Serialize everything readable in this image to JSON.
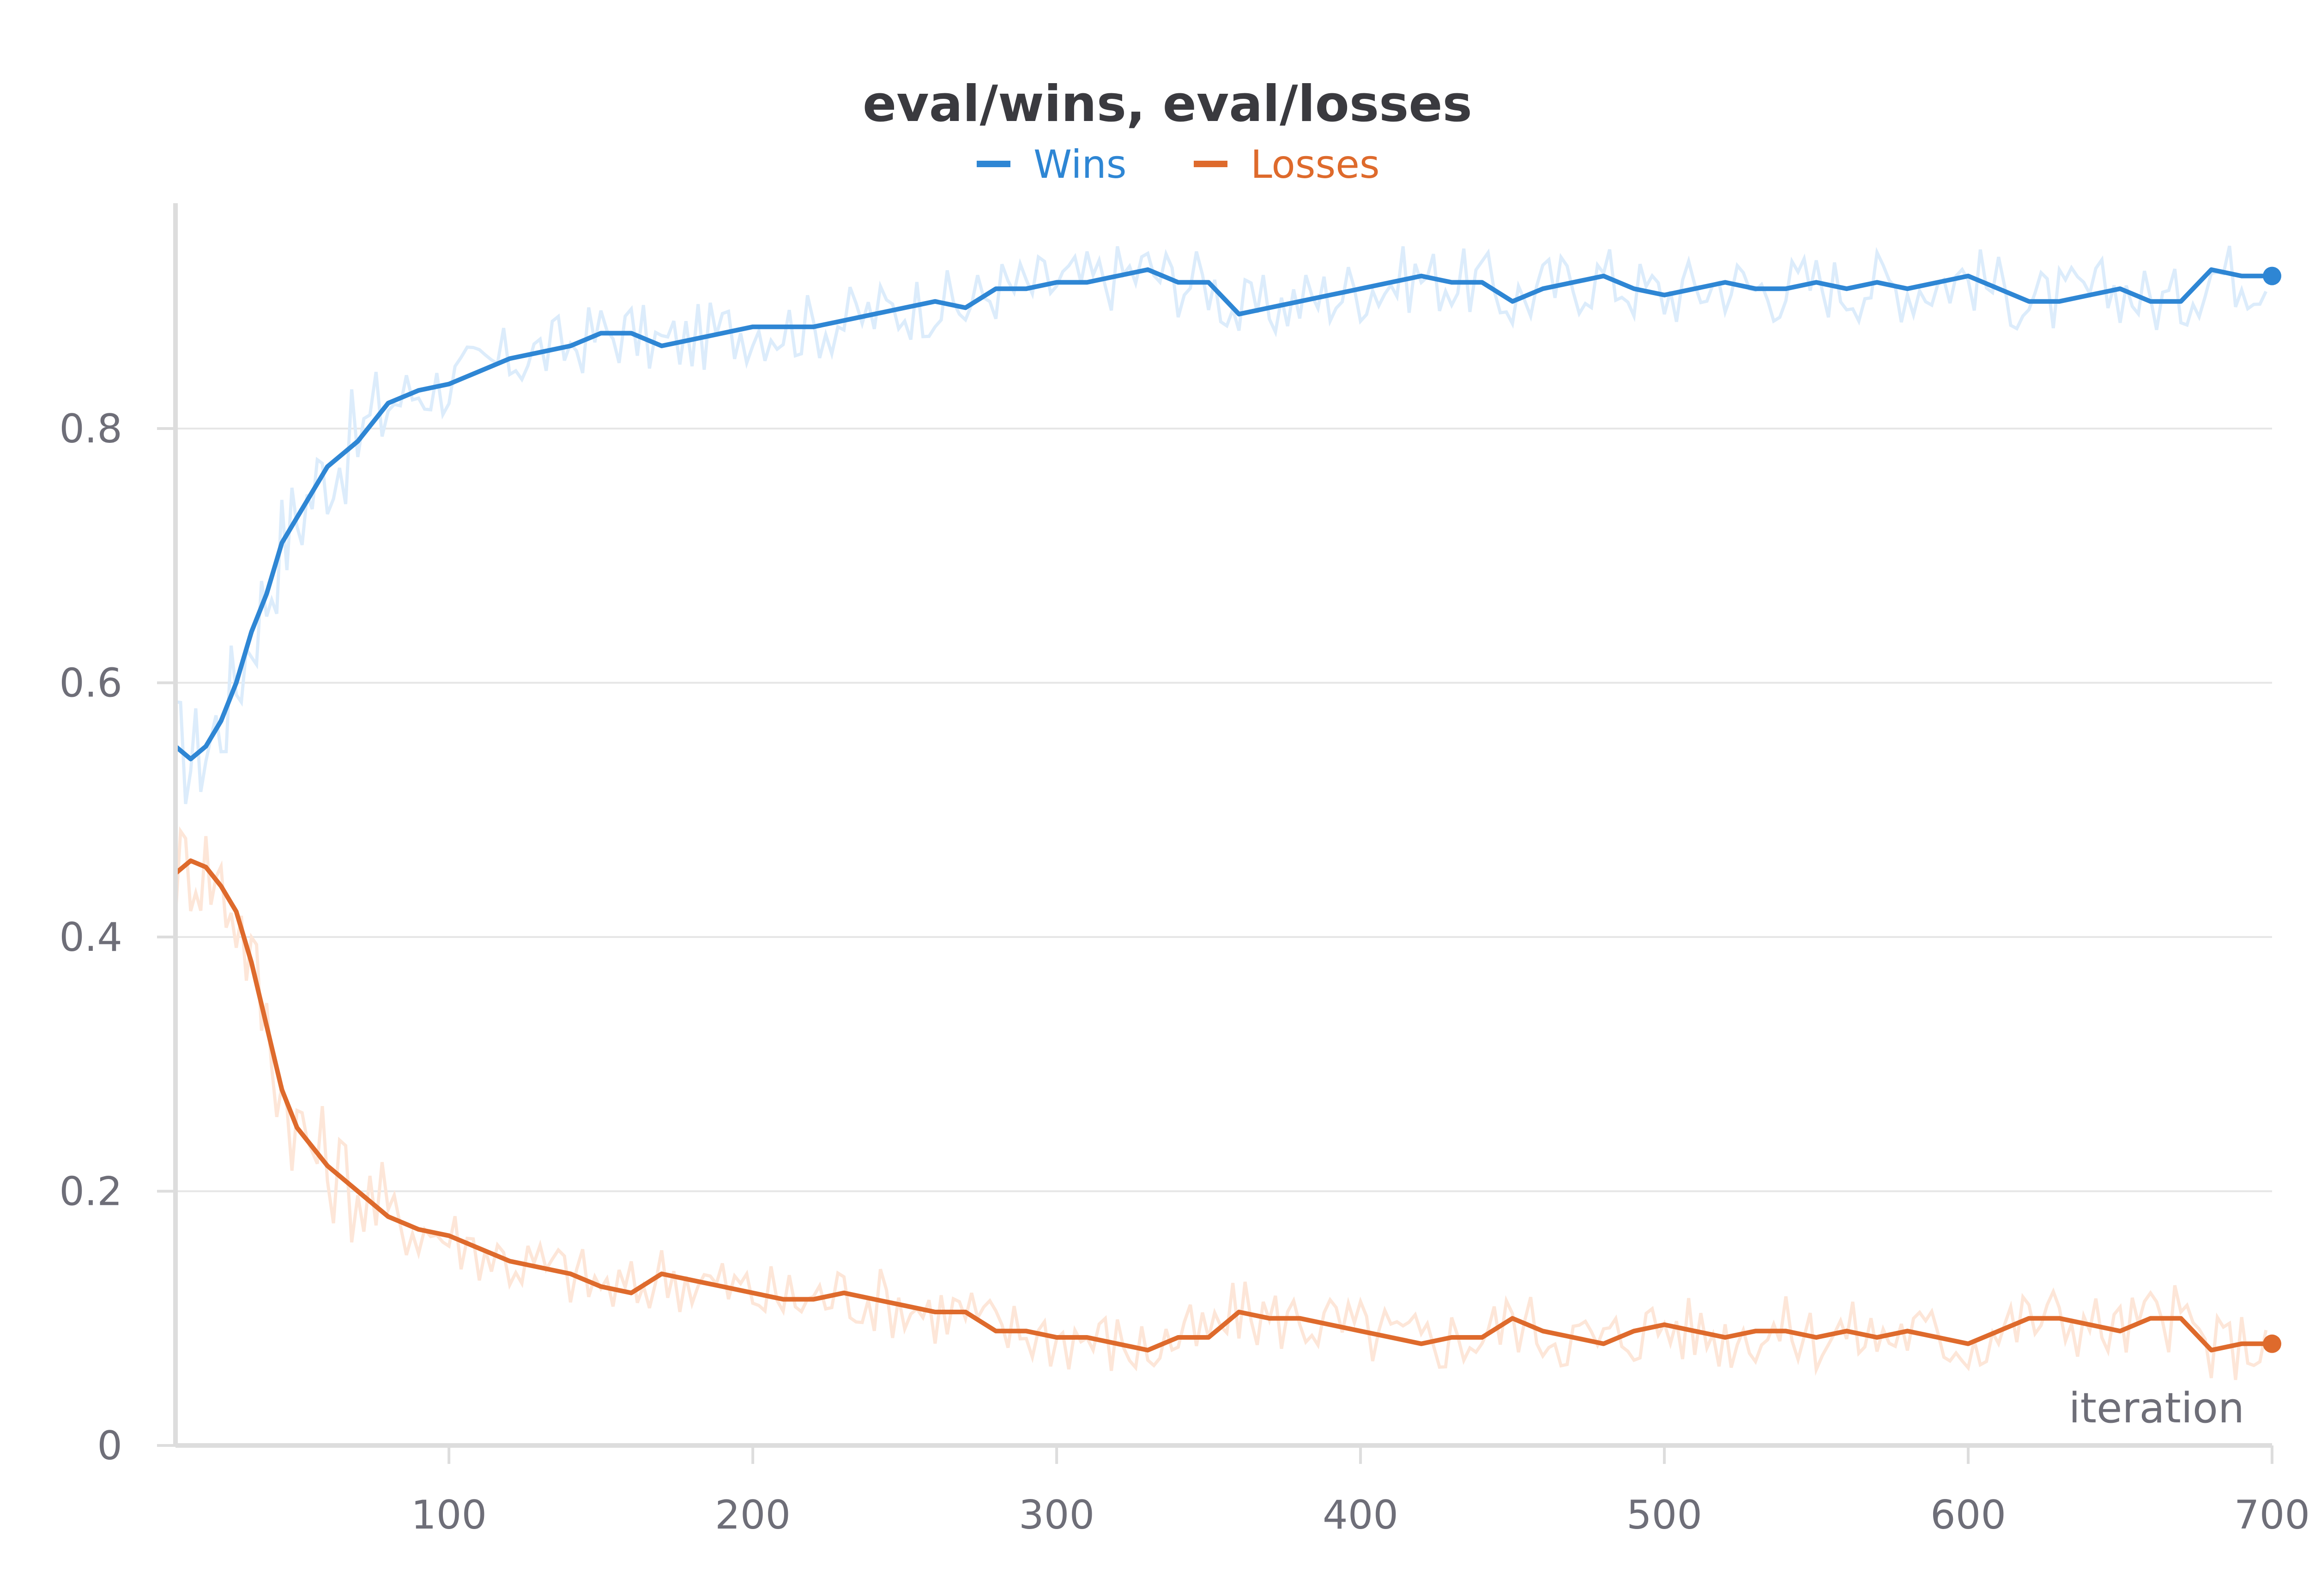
{
  "chart_data": {
    "type": "line",
    "title": "eval/wins, eval/losses",
    "xlabel": "iteration",
    "ylabel": "",
    "xlim": [
      10,
      700
    ],
    "ylim": [
      0,
      0.97
    ],
    "x_ticks": [
      100,
      200,
      300,
      400,
      500,
      600,
      700
    ],
    "x_tick_labels": [
      "100",
      "200",
      "300",
      "400",
      "500",
      "600",
      "700"
    ],
    "y_ticks": [
      0,
      0.2,
      0.4,
      0.6,
      0.8
    ],
    "y_tick_labels": [
      "0",
      "0.2",
      "0.4",
      "0.6",
      "0.8"
    ],
    "grid": true,
    "legend_position": "top-center",
    "colors": {
      "wins": "#2e86d4",
      "wins_raw": "#dcecfb",
      "losses": "#de6a2c",
      "losses_raw": "#fde6d8",
      "grid": "#e6e6e6",
      "axis": "#dddddd"
    },
    "x": [
      10,
      15,
      20,
      25,
      30,
      35,
      40,
      45,
      50,
      55,
      60,
      70,
      80,
      90,
      100,
      110,
      120,
      130,
      140,
      150,
      160,
      170,
      180,
      190,
      200,
      210,
      220,
      230,
      240,
      250,
      260,
      270,
      280,
      290,
      300,
      310,
      320,
      330,
      340,
      350,
      360,
      370,
      380,
      390,
      400,
      410,
      420,
      430,
      440,
      450,
      460,
      470,
      480,
      490,
      500,
      510,
      520,
      530,
      540,
      550,
      560,
      570,
      580,
      590,
      600,
      610,
      620,
      630,
      640,
      650,
      660,
      670,
      680,
      690,
      700
    ],
    "series": [
      {
        "name": "Wins",
        "key": "wins",
        "values": [
          0.55,
          0.54,
          0.55,
          0.57,
          0.6,
          0.64,
          0.67,
          0.71,
          0.73,
          0.75,
          0.77,
          0.79,
          0.82,
          0.83,
          0.835,
          0.845,
          0.855,
          0.86,
          0.865,
          0.875,
          0.875,
          0.865,
          0.87,
          0.875,
          0.88,
          0.88,
          0.88,
          0.885,
          0.89,
          0.895,
          0.9,
          0.895,
          0.91,
          0.91,
          0.915,
          0.915,
          0.92,
          0.925,
          0.915,
          0.915,
          0.89,
          0.895,
          0.9,
          0.905,
          0.91,
          0.915,
          0.92,
          0.915,
          0.915,
          0.9,
          0.91,
          0.915,
          0.92,
          0.91,
          0.905,
          0.91,
          0.915,
          0.91,
          0.91,
          0.915,
          0.91,
          0.915,
          0.91,
          0.915,
          0.92,
          0.91,
          0.9,
          0.9,
          0.905,
          0.91,
          0.9,
          0.9,
          0.925,
          0.92,
          0.92
        ]
      },
      {
        "name": "Losses",
        "key": "losses",
        "values": [
          0.45,
          0.46,
          0.455,
          0.44,
          0.42,
          0.38,
          0.33,
          0.28,
          0.25,
          0.235,
          0.22,
          0.2,
          0.18,
          0.17,
          0.165,
          0.155,
          0.145,
          0.14,
          0.135,
          0.125,
          0.12,
          0.135,
          0.13,
          0.125,
          0.12,
          0.115,
          0.115,
          0.12,
          0.115,
          0.11,
          0.105,
          0.105,
          0.09,
          0.09,
          0.085,
          0.085,
          0.08,
          0.075,
          0.085,
          0.085,
          0.105,
          0.1,
          0.1,
          0.095,
          0.09,
          0.085,
          0.08,
          0.085,
          0.085,
          0.1,
          0.09,
          0.085,
          0.08,
          0.09,
          0.095,
          0.09,
          0.085,
          0.09,
          0.09,
          0.085,
          0.09,
          0.085,
          0.09,
          0.085,
          0.08,
          0.09,
          0.1,
          0.1,
          0.095,
          0.09,
          0.1,
          0.1,
          0.075,
          0.08,
          0.08
        ]
      }
    ]
  }
}
